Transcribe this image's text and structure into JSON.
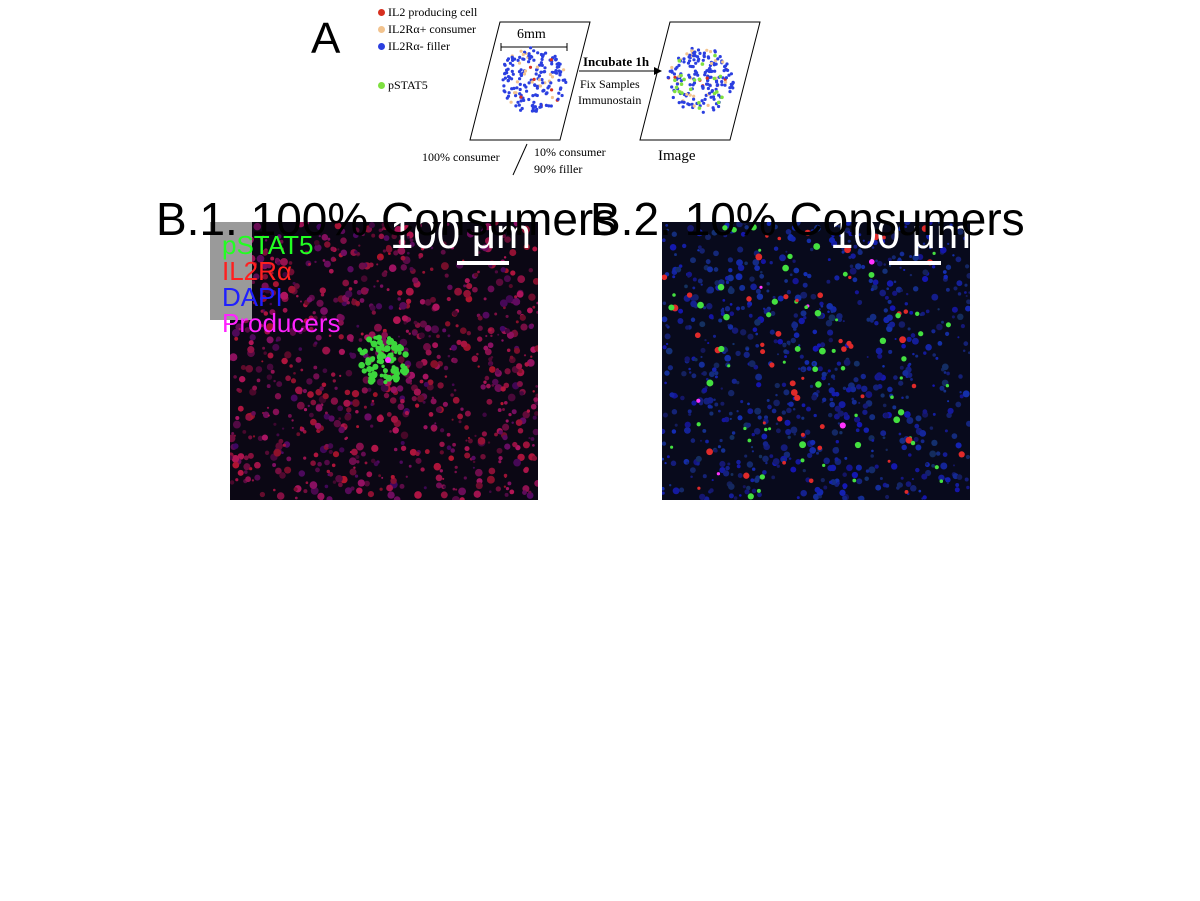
{
  "panel_a": {
    "letter": "A",
    "legend": [
      {
        "label": "IL2 producing cell",
        "color": "#d7301f"
      },
      {
        "label": "IL2Rα+ consumer",
        "color": "#f2c38e"
      },
      {
        "label": "IL2Rα- filler",
        "color": "#2b3fe0"
      },
      {
        "label": "pSTAT5",
        "color": "#7ee040"
      }
    ],
    "dish_size": "6mm",
    "arrow_top": "Incubate 1h",
    "arrow_bottom_1": "Fix Samples",
    "arrow_bottom_2": "Immunostain",
    "left_caption": "100% consumer",
    "right_caption_1": "10% consumer",
    "right_caption_2": "90% filler",
    "image_caption": "Image"
  },
  "panel_b1": {
    "title": "B.1. 100% Consumers",
    "scale": "100 μm",
    "channels": [
      {
        "label": "pSTAT5",
        "color": "#22ff22"
      },
      {
        "label": "IL2Rα",
        "color": "#ff2020"
      },
      {
        "label": "DAPI",
        "color": "#2020ff"
      },
      {
        "label": "Producers",
        "color": "#ff22ff"
      }
    ]
  },
  "panel_b2": {
    "title": "B.2. 10% Consumers",
    "scale": "100 μm"
  }
}
